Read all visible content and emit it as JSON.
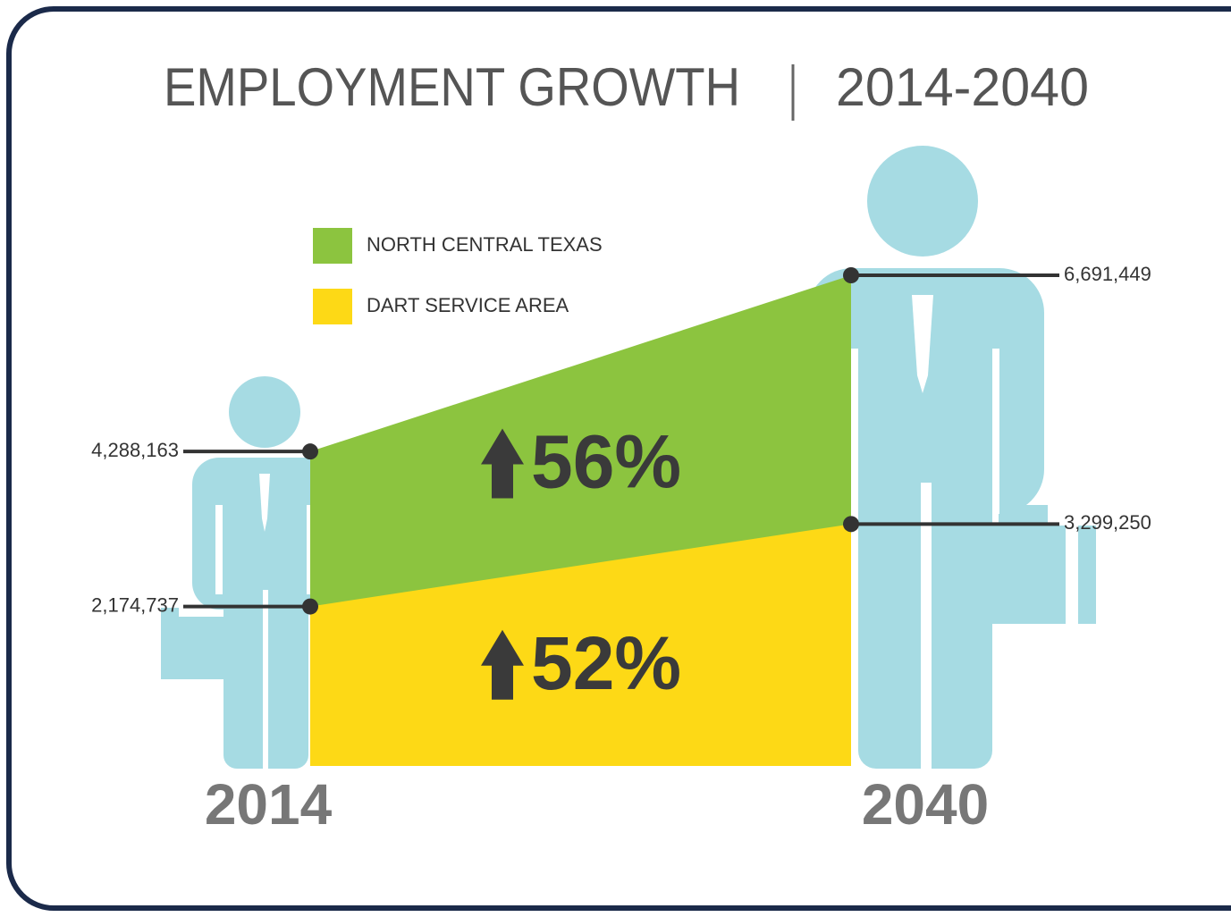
{
  "chart_data": {
    "type": "area",
    "title": "EMPLOYMENT GROWTH",
    "subtitle": "2014-2040",
    "categories": [
      "2014",
      "2040"
    ],
    "series": [
      {
        "name": "NORTH CENTRAL TEXAS",
        "color": "#8cc43f",
        "values": [
          4288163,
          6691449
        ],
        "value_labels": [
          "4,288,163",
          "6,691,449"
        ],
        "change": "56%"
      },
      {
        "name": "DART SERVICE AREA",
        "color": "#fdd916",
        "values": [
          2174737,
          3299250
        ],
        "value_labels": [
          "2,174,737",
          "3,299,250"
        ],
        "change": "52%"
      }
    ]
  }
}
